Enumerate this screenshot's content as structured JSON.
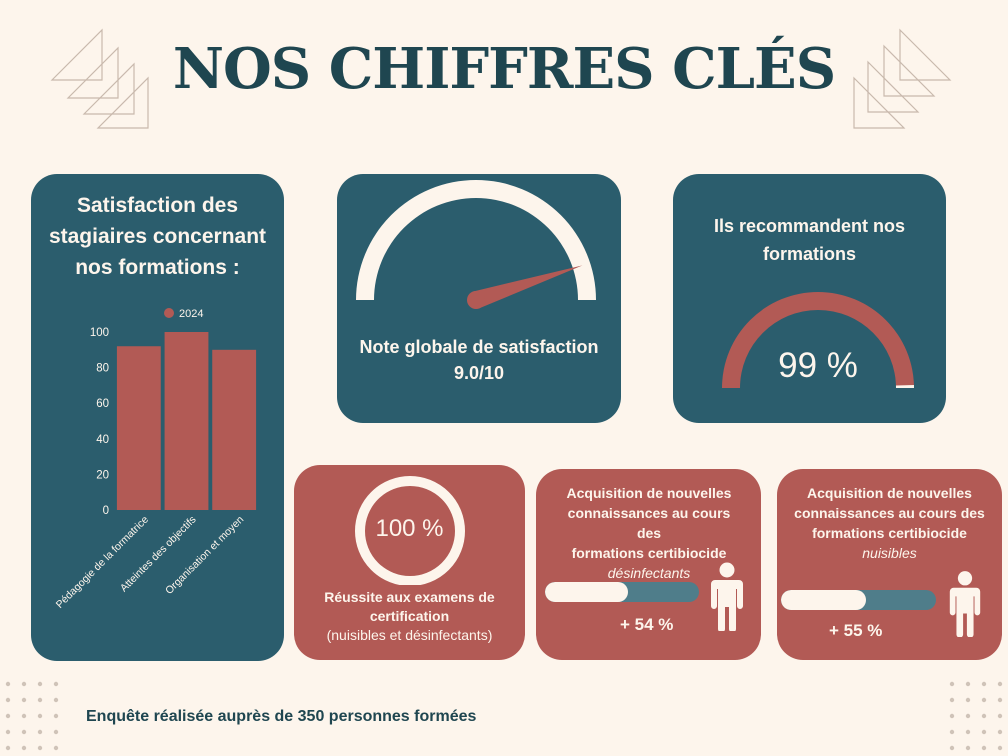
{
  "title": "NOS CHIFFRES CLÉS",
  "colors": {
    "background": "#fdf5ec",
    "teal": "#2b5d6d",
    "red": "#b25a55",
    "cream": "#fdf5ec",
    "title": "#1f4650",
    "bar_track": "#4f7d8a"
  },
  "satisfaction_card": {
    "title_lines": [
      "Satisfaction des",
      "stagiaires concernant",
      "nos formations :"
    ]
  },
  "chart_data": {
    "type": "bar",
    "categories": [
      "Pédagogie de la formatrice",
      "Atteintes des objectifs",
      "Organisation et moyen"
    ],
    "series": [
      {
        "name": "2024",
        "values": [
          92,
          100,
          90
        ]
      }
    ],
    "ylim": [
      0,
      100
    ],
    "yticks": [
      0,
      20,
      40,
      60,
      80,
      100
    ],
    "legend": "top-center",
    "grid": false
  },
  "global_note_card": {
    "label": "Note globale de satisfaction",
    "value": "9.0/10",
    "gauge_score": 9.0,
    "gauge_max": 10
  },
  "recommend_card": {
    "title_lines": [
      "Ils recommandent nos",
      "formations"
    ],
    "value": "99 %",
    "percent": 99
  },
  "exam_card": {
    "value": "100 %",
    "label_line1": "Réussite aux examens de",
    "label_line2": "certification",
    "label_line3": "(nuisibles et désinfectants)"
  },
  "acquisition_cards": [
    {
      "lines": [
        "Acquisition de nouvelles",
        "connaissances au cours des",
        "formations certibiocide"
      ],
      "emphasis": "désinfectants",
      "value": "+ 54 %",
      "bar_fill": 0.54,
      "icon": "person-icon"
    },
    {
      "lines": [
        "Acquisition de nouvelles",
        "connaissances au cours des",
        "formations certibiocide"
      ],
      "emphasis": "nuisibles",
      "value": "+ 55 %",
      "bar_fill": 0.55,
      "icon": "person-icon"
    }
  ],
  "footer": "Enquête réalisée auprès de 350 personnes formées"
}
